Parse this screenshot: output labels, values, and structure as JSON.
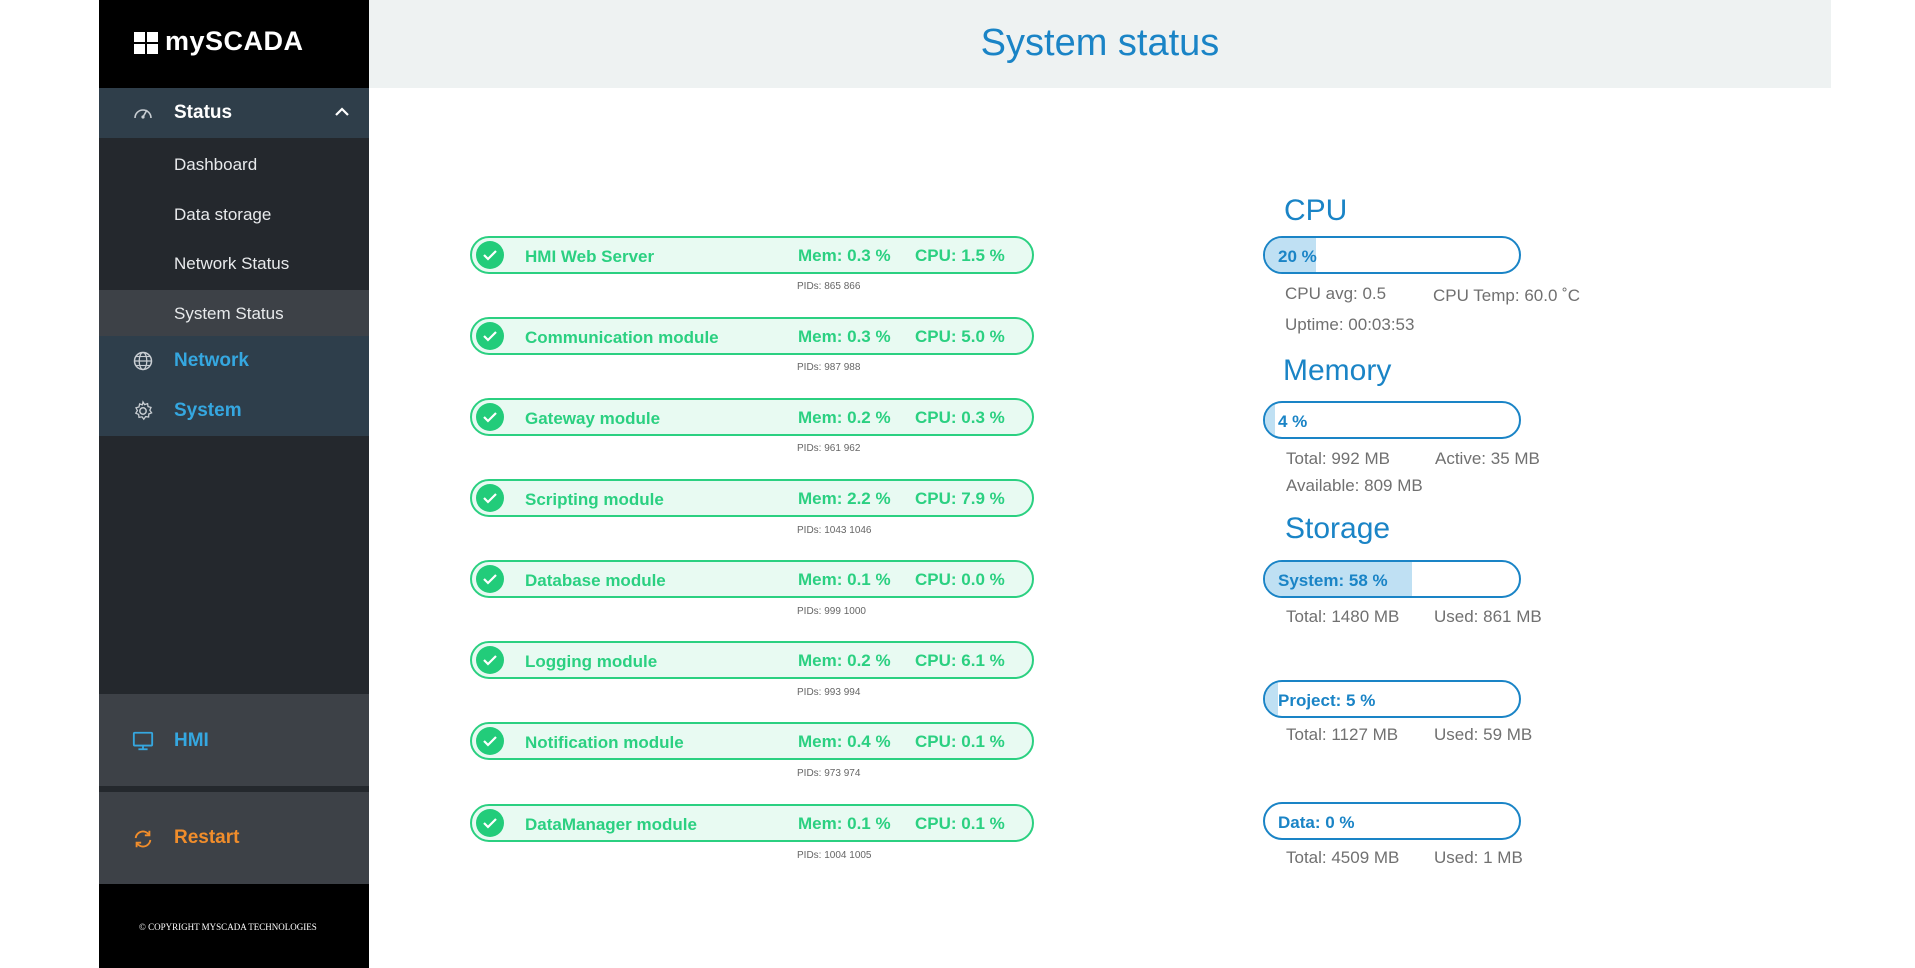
{
  "app": {
    "logo_text": "mySCADA"
  },
  "header": {
    "title": "System status"
  },
  "sidebar": {
    "status_label": "Status",
    "sub_items": [
      "Dashboard",
      "Data storage",
      "Network Status",
      "System Status"
    ],
    "network_label": "Network",
    "system_label": "System",
    "hmi_label": "HMI",
    "restart_label": "Restart",
    "copyright": "© COPYRIGHT MYSCADA TECHNOLOGIES"
  },
  "modules": [
    {
      "name": "HMI Web Server",
      "mem": "Mem: 0.3 %",
      "cpu": "CPU: 1.5 %",
      "pids": "PIDs: 865 866"
    },
    {
      "name": "Communication module",
      "mem": "Mem: 0.3 %",
      "cpu": "CPU: 5.0 %",
      "pids": "PIDs: 987 988"
    },
    {
      "name": "Gateway module",
      "mem": "Mem: 0.2 %",
      "cpu": "CPU: 0.3 %",
      "pids": "PIDs: 961 962"
    },
    {
      "name": "Scripting module",
      "mem": "Mem: 2.2 %",
      "cpu": "CPU: 7.9 %",
      "pids": "PIDs: 1043 1046"
    },
    {
      "name": "Database module",
      "mem": "Mem: 0.1 %",
      "cpu": "CPU: 0.0 %",
      "pids": "PIDs: 999 1000"
    },
    {
      "name": "Logging module",
      "mem": "Mem: 0.2 %",
      "cpu": "CPU: 6.1 %",
      "pids": "PIDs: 993 994"
    },
    {
      "name": "Notification module",
      "mem": "Mem: 0.4 %",
      "cpu": "CPU: 0.1 %",
      "pids": "PIDs: 973 974"
    },
    {
      "name": "DataManager module",
      "mem": "Mem: 0.1 %",
      "cpu": "CPU: 0.1 %",
      "pids": "PIDs: 1004 1005"
    }
  ],
  "cpu": {
    "title": "CPU",
    "bar_label": "20 %",
    "level": 0.2,
    "avg": "CPU avg: 0.5",
    "temp": "CPU Temp: 60.0 ˚C",
    "uptime": "Uptime: 00:03:53"
  },
  "memory": {
    "title": "Memory",
    "bar_label": "4 %",
    "level": 0.04,
    "total": "Total: 992 MB",
    "active": "Active: 35 MB",
    "available": "Available: 809 MB"
  },
  "storage": {
    "title": "Storage",
    "system": {
      "bar_label": "System: 58 %",
      "level": 0.58,
      "total": "Total: 1480 MB",
      "used": "Used: 861 MB"
    },
    "project": {
      "bar_label": "Project: 5 %",
      "level": 0.05,
      "total": "Total: 1127 MB",
      "used": "Used: 59 MB"
    },
    "data": {
      "bar_label": "Data: 0 %",
      "level": 0.0,
      "total": "Total: 4509 MB",
      "used": "Used: 1 MB"
    }
  },
  "colors": {
    "accent_blue": "#1a84c6",
    "link_blue": "#35a7e0",
    "ok_green": "#2bd081",
    "restart_orange": "#f18d2b"
  }
}
